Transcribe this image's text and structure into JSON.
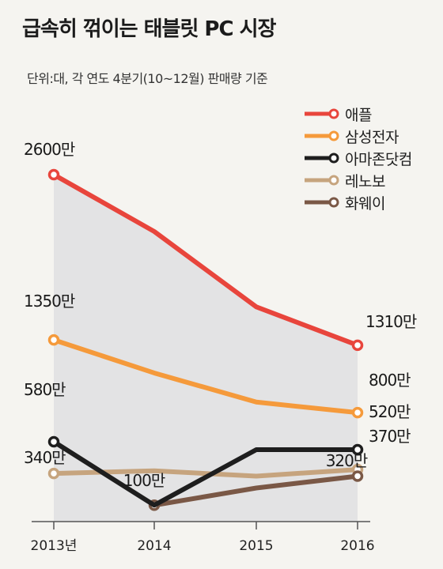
{
  "title": "급속히 꺾이는 태블릿 PC 시장",
  "subtitle": "단위:대, 각 연도 4분기(10~12월) 판매량 기준",
  "chart_data": {
    "type": "line",
    "x": [
      "2013년",
      "2014",
      "2015",
      "2016"
    ],
    "ylim": [
      0,
      3000
    ],
    "grid": false,
    "legend_position": "top-right",
    "series": [
      {
        "name": "애플",
        "color": "#e8453c",
        "values": [
          2600,
          2170,
          1600,
          1310
        ],
        "start_label": "2600만",
        "end_label": "1310만"
      },
      {
        "name": "삼성전자",
        "color": "#f59a3b",
        "values": [
          1350,
          1100,
          880,
          800
        ],
        "start_label": "1350만",
        "end_label": "800만"
      },
      {
        "name": "아마존닷컴",
        "color": "#1e1e1e",
        "values": [
          580,
          100,
          520,
          520
        ],
        "start_label": "580만",
        "end_label": "520만"
      },
      {
        "name": "레노보",
        "color": "#c6a47e",
        "values": [
          340,
          360,
          320,
          370
        ],
        "start_label": "340만",
        "end_label": "370만"
      },
      {
        "name": "화웨이",
        "color": "#7a5846",
        "values": [
          null,
          100,
          230,
          320
        ],
        "start_label": "100만",
        "end_label": "320만"
      }
    ]
  }
}
